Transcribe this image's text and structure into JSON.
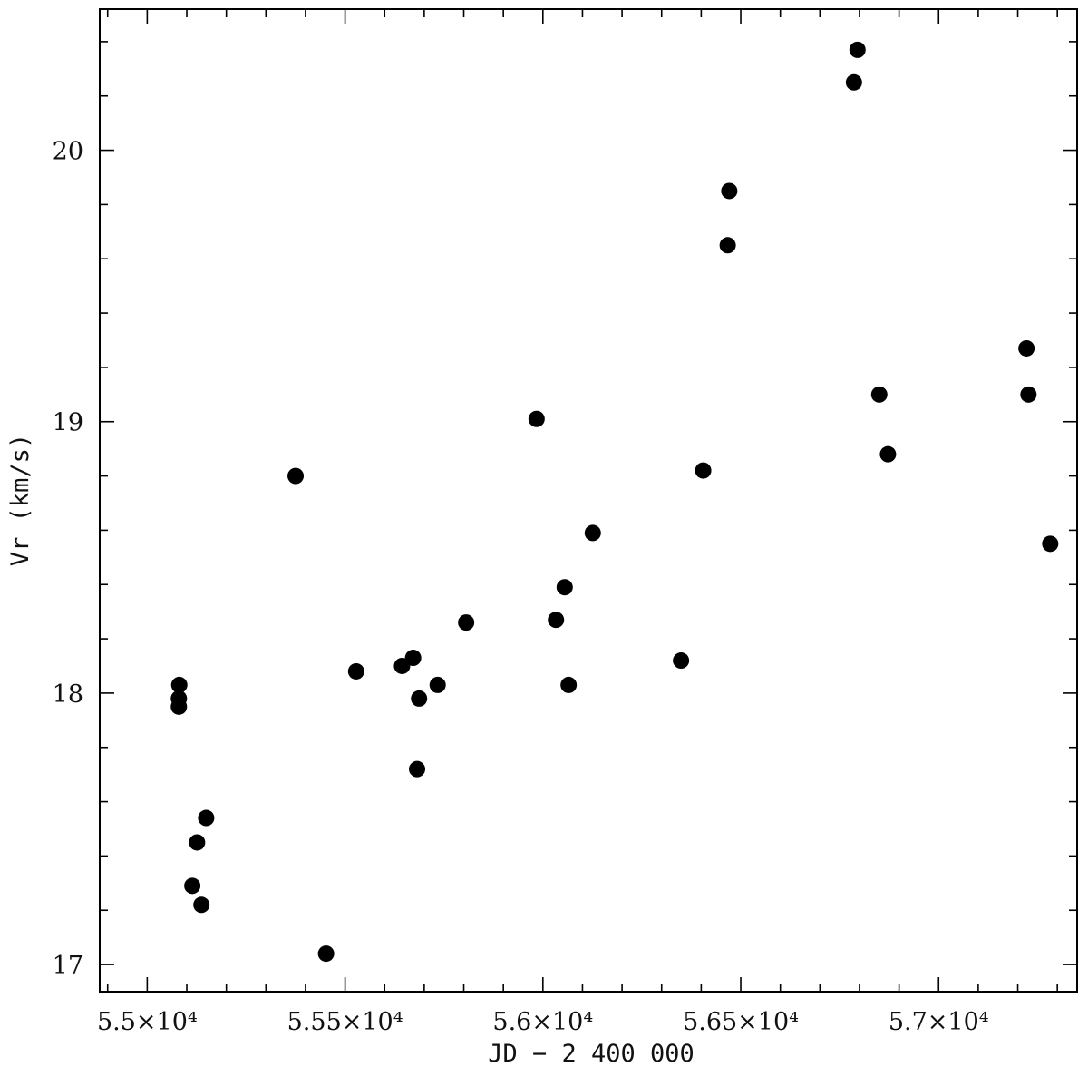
{
  "chart_data": {
    "type": "scatter",
    "title": "",
    "xlabel": "JD − 2 400 000",
    "ylabel": "Vr (km/s)",
    "xlim": [
      54880,
      57350
    ],
    "ylim": [
      16.9,
      20.52
    ],
    "x_ticks": [
      {
        "value": 55000,
        "label": "5.5×10⁴"
      },
      {
        "value": 55500,
        "label": "5.55×10⁴"
      },
      {
        "value": 56000,
        "label": "5.6×10⁴"
      },
      {
        "value": 56500,
        "label": "5.65×10⁴"
      },
      {
        "value": 57000,
        "label": "5.7×10⁴"
      }
    ],
    "x_minor_step": 100,
    "y_ticks": [
      {
        "value": 17,
        "label": "17"
      },
      {
        "value": 18,
        "label": "18"
      },
      {
        "value": 19,
        "label": "19"
      },
      {
        "value": 20,
        "label": "20"
      }
    ],
    "y_minor_step": 0.2,
    "grid": false,
    "legend": "none",
    "marker_color": "#000000",
    "points": [
      {
        "x": 55081,
        "y": 18.03
      },
      {
        "x": 55080,
        "y": 17.98
      },
      {
        "x": 55080,
        "y": 17.95
      },
      {
        "x": 55114,
        "y": 17.29
      },
      {
        "x": 55126,
        "y": 17.45
      },
      {
        "x": 55137,
        "y": 17.22
      },
      {
        "x": 55149,
        "y": 17.54
      },
      {
        "x": 55375,
        "y": 18.8
      },
      {
        "x": 55452,
        "y": 17.04
      },
      {
        "x": 55528,
        "y": 18.08
      },
      {
        "x": 55644,
        "y": 18.1
      },
      {
        "x": 55672,
        "y": 18.13
      },
      {
        "x": 55687,
        "y": 17.98
      },
      {
        "x": 55682,
        "y": 17.72
      },
      {
        "x": 55734,
        "y": 18.03
      },
      {
        "x": 55806,
        "y": 18.26
      },
      {
        "x": 55984,
        "y": 19.01
      },
      {
        "x": 56033,
        "y": 18.27
      },
      {
        "x": 56055,
        "y": 18.39
      },
      {
        "x": 56065,
        "y": 18.03
      },
      {
        "x": 56126,
        "y": 18.59
      },
      {
        "x": 56349,
        "y": 18.12
      },
      {
        "x": 56405,
        "y": 18.82
      },
      {
        "x": 56467,
        "y": 19.65
      },
      {
        "x": 56471,
        "y": 19.85
      },
      {
        "x": 56786,
        "y": 20.25
      },
      {
        "x": 56795,
        "y": 20.37
      },
      {
        "x": 56850,
        "y": 19.1
      },
      {
        "x": 56872,
        "y": 18.88
      },
      {
        "x": 57222,
        "y": 19.27
      },
      {
        "x": 57227,
        "y": 19.1
      },
      {
        "x": 57282,
        "y": 18.55
      }
    ]
  }
}
